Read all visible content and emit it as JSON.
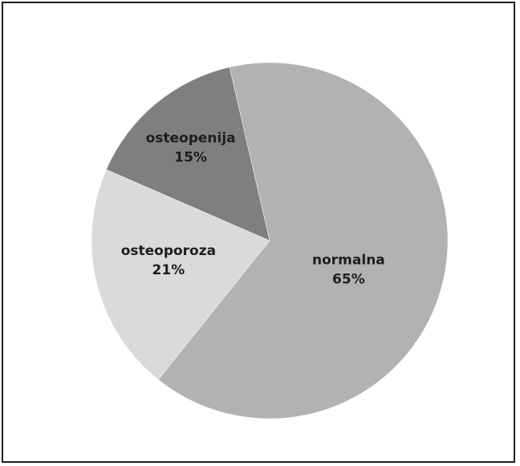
{
  "chart_data": {
    "type": "pie",
    "title": "",
    "slices": [
      {
        "label": "normalna",
        "value": 65,
        "display": "65%",
        "color": "#b2b2b2"
      },
      {
        "label": "osteoporoza",
        "value": 21,
        "display": "21%",
        "color": "#dadadb"
      },
      {
        "label": "osteopenija",
        "value": 15,
        "display": "15%",
        "color": "#7f7f80"
      }
    ],
    "start_angle_deg": -13,
    "direction": "clockwise",
    "legend": "none",
    "border_color": "#1e1e1e"
  }
}
